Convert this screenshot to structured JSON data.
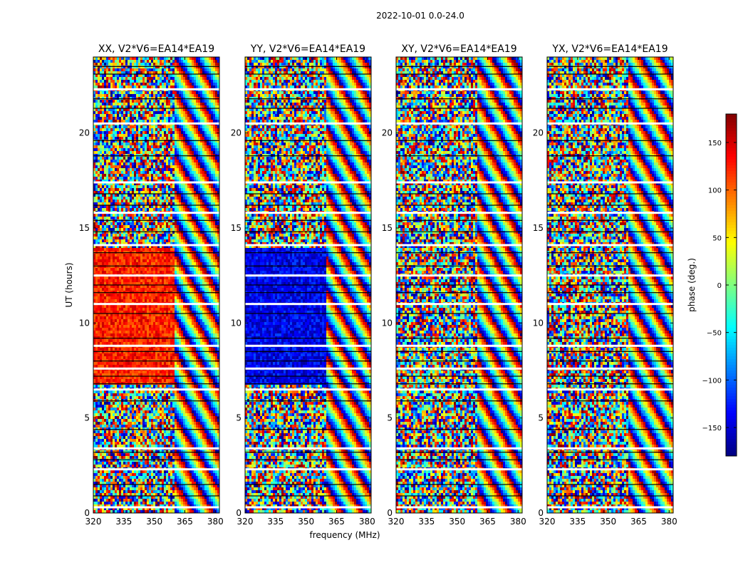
{
  "figure_title": "2022-10-01 0.0-24.0",
  "chart_data": {
    "type": "heatmap",
    "title": "2022-10-01 0.0-24.0",
    "xlabel": "frequency (MHz)",
    "ylabel": "UT (hours)",
    "xlim": [
      320,
      382
    ],
    "ylim": [
      0,
      24
    ],
    "x_ticks": [
      320,
      335,
      350,
      365,
      380
    ],
    "y_ticks": [
      0,
      5,
      10,
      15,
      20
    ],
    "panels": [
      {
        "title": "XX, V2*V6=EA14*EA19",
        "pol": "XX",
        "mean_phase_block": 125
      },
      {
        "title": "YY, V2*V6=EA14*EA19",
        "pol": "YY",
        "mean_phase_block": -140
      },
      {
        "title": "XY, V2*V6=EA14*EA19",
        "pol": "XY",
        "mean_phase_block": null
      },
      {
        "title": "YX, V2*V6=EA14*EA19",
        "pol": "YX",
        "mean_phase_block": null
      }
    ],
    "colorbar": {
      "label": "phase (deg.)",
      "range": [
        -180,
        180
      ],
      "ticks": [
        -150,
        -100,
        -50,
        0,
        50,
        100,
        150
      ],
      "tick_labels": [
        "−150",
        "−100",
        "−50",
        "0",
        "50",
        "100",
        "150"
      ],
      "colormap": "jet"
    },
    "flagged_hours": [
      0.3,
      0.9,
      1.5,
      2.3,
      2.8,
      3.2,
      3.4,
      4.4,
      5.9,
      6.5,
      6.8,
      7.2,
      7.6,
      8.0,
      8.5,
      8.8,
      9.2,
      10.5,
      11.0,
      11.6,
      12.0,
      12.5,
      13.0,
      13.7,
      14.1,
      14.8,
      15.4,
      15.8,
      16.2,
      16.8,
      17.4,
      18.8,
      19.6,
      20.5,
      21.3,
      21.8,
      22.3,
      23.1,
      23.5
    ]
  }
}
